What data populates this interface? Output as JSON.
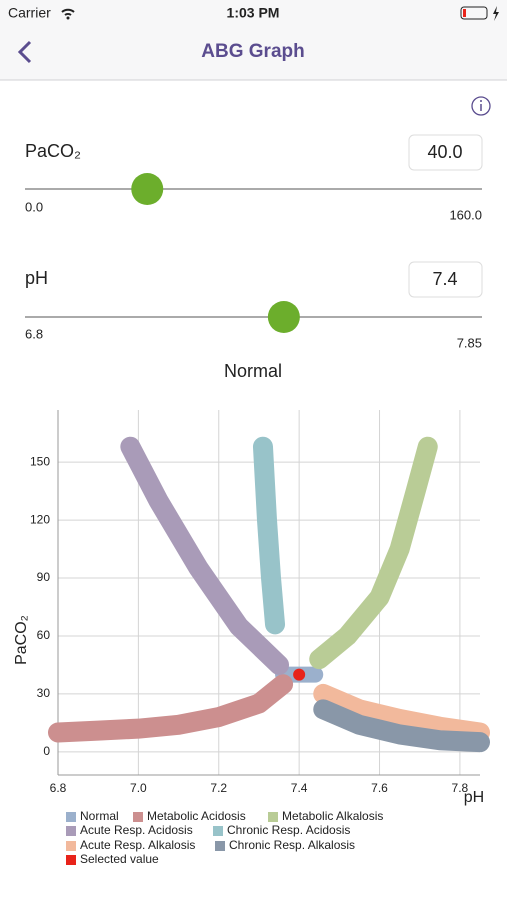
{
  "status_bar": {
    "carrier": "Carrier",
    "time": "1:03 PM"
  },
  "nav": {
    "title": "ABG Graph"
  },
  "paco2": {
    "label": "PaCO₂",
    "value": "40.0",
    "min": "0.0",
    "max": "160.0"
  },
  "ph": {
    "label": "pH",
    "value": "7.4",
    "min": "6.8",
    "max": "7.85"
  },
  "interpretation": "Normal",
  "chart_data": {
    "type": "line",
    "x_label": "pH",
    "y_label": "PaCO₂",
    "xlim": [
      6.8,
      7.85
    ],
    "xticks": [
      6.8,
      {
        "value": 7,
        "label": "7.0"
      },
      7.2,
      7.4,
      7.6,
      7.8
    ],
    "ylim": [
      -12,
      177
    ],
    "yticks": [
      0,
      30,
      60,
      90,
      120,
      150
    ],
    "grid": true,
    "series": [
      {
        "name": "Normal",
        "color": "#9bb0cc",
        "x": [
          7.36,
          7.44
        ],
        "values": [
          40,
          40
        ]
      },
      {
        "name": "Metabolic Acidosis",
        "color": "#cc8f8f",
        "x": [
          6.8,
          6.9,
          7.0,
          7.1,
          7.2,
          7.3,
          7.36
        ],
        "values": [
          10,
          11,
          12,
          14,
          18,
          25,
          35
        ]
      },
      {
        "name": "Metabolic Alkalosis",
        "color": "#b9cc96",
        "x": [
          7.45,
          7.52,
          7.6,
          7.65,
          7.69,
          7.72
        ],
        "values": [
          48,
          60,
          80,
          105,
          135,
          158
        ]
      },
      {
        "name": "Acute Resp. Acidosis",
        "color": "#a99bb8",
        "x": [
          6.98,
          7.05,
          7.15,
          7.25,
          7.35
        ],
        "values": [
          158,
          130,
          95,
          65,
          45
        ]
      },
      {
        "name": "Chronic Resp. Acidosis",
        "color": "#98c3c9",
        "x": [
          7.31,
          7.32,
          7.33,
          7.34
        ],
        "values": [
          158,
          120,
          90,
          66
        ]
      },
      {
        "name": "Acute Resp. Alkalosis",
        "color": "#f2b99c",
        "x": [
          7.46,
          7.55,
          7.65,
          7.75,
          7.85
        ],
        "values": [
          30,
          22,
          17,
          13,
          10
        ]
      },
      {
        "name": "Chronic Resp. Alkalosis",
        "color": "#8997a8",
        "x": [
          7.46,
          7.55,
          7.65,
          7.75,
          7.85
        ],
        "values": [
          22,
          14,
          9,
          6,
          5
        ]
      },
      {
        "name": "Selected value",
        "color": "#e8231a",
        "x": [
          7.4
        ],
        "values": [
          40
        ]
      }
    ]
  }
}
